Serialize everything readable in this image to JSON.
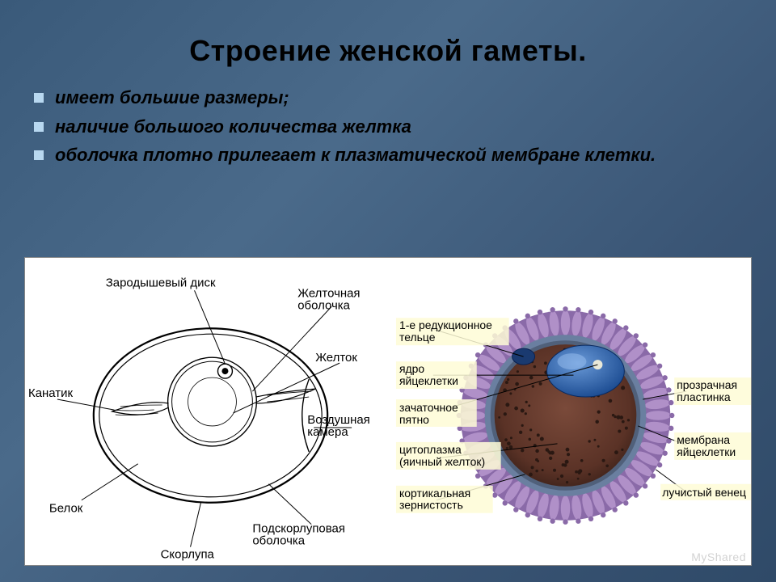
{
  "title": "Строение женской гаметы.",
  "bullets": [
    "имеет большие размеры;",
    "наличие большого количества желтка",
    "оболочка плотно прилегает к плазматической мембране клетки."
  ],
  "egg_diagram": {
    "type": "line-diagram",
    "labels": {
      "germinal_disc": "Зародышевый диск",
      "yolk_membrane": "Желточная\nоболочка",
      "yolk": "Желток",
      "air_cell": "Воздушная\nкамера",
      "sub_shell_membrane": "Подскорлуповая\nоболочка",
      "shell": "Скорлупа",
      "albumen": "Белок",
      "chalaza": "Канатик"
    },
    "style": {
      "stroke": "#000000",
      "stroke_width": 1.4,
      "font_size": 14,
      "background": "#ffffff"
    }
  },
  "ovum_diagram": {
    "type": "colored-diagram",
    "labels": {
      "zona_pellucida": "прозрачная\nпластинка",
      "ovum_membrane": "мембрана\nяйцеклетки",
      "corona_radiata": "лучистый венец",
      "polar_body": "1-е редукционное\nтельце",
      "nucleus": "ядро\nяйцеклетки",
      "germ_spot": "зачаточное\nпятно",
      "cytoplasm": "цитоплазма\n(яичный желток)",
      "cortical_granules": "кортикальная\nзернистость"
    },
    "colors": {
      "corona": "#8a6aa8",
      "corona_tips": "#b090c8",
      "zona": "#6a7fa0",
      "cytoplasm": "#6a3a2c",
      "cytoplasm_edge": "#4a2a20",
      "nucleus": "#2a5aa0",
      "nucleus_light": "#4a7ac0",
      "polar_body": "#1a3a70",
      "germ_spot": "#e8e8d8",
      "label_bg": "#fefcd6",
      "label_text": "#000000",
      "leader": "#000000"
    },
    "style": {
      "font_size": 14
    }
  },
  "watermark": "MyShared"
}
